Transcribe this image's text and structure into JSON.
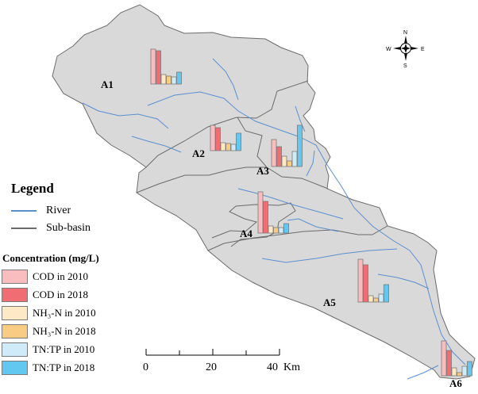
{
  "legend": {
    "title": "Legend",
    "river_label": "River",
    "subbasin_label": "Sub-basin",
    "concentration_title": "Concentration (mg/L)",
    "items": [
      {
        "label": "COD in 2010",
        "color": "#f9bcbf"
      },
      {
        "label": "COD in 2018",
        "color": "#f06e73"
      },
      {
        "label": "NH₃-N in 2010",
        "color": "#fde9c6"
      },
      {
        "label": "NH₃-N in 2018",
        "color": "#f8cc82"
      },
      {
        "label": "TN:TP in 2010",
        "color": "#cfeaf8"
      },
      {
        "label": "TN:TP in 2018",
        "color": "#63c8ef"
      }
    ]
  },
  "colors": {
    "basin_fill": "#d9d9d9",
    "basin_edge": "#6b6b6b",
    "river": "#5b8fd0",
    "bar_edge": "#7a7a7a"
  },
  "subbasins": [
    "A1",
    "A2",
    "A3",
    "A4",
    "A5",
    "A6"
  ],
  "scale_bar": {
    "ticks": [
      "0",
      "20",
      "40"
    ],
    "unit": "Km"
  },
  "compass": {
    "n": "N",
    "s": "S",
    "e": "E",
    "w": "W"
  },
  "chart_data": {
    "type": "bar",
    "categories": [
      "COD in 2010",
      "COD in 2018",
      "NH₃-N in 2010",
      "NH₃-N in 2018",
      "TN:TP in 2010",
      "TN:TP in 2018"
    ],
    "series": [
      {
        "name": "A1",
        "values": [
          44,
          42,
          12,
          10,
          9,
          15
        ]
      },
      {
        "name": "A2",
        "values": [
          32,
          29,
          10,
          9,
          8,
          22
        ]
      },
      {
        "name": "A3",
        "values": [
          34,
          25,
          13,
          7,
          19,
          52
        ]
      },
      {
        "name": "A4",
        "values": [
          52,
          40,
          9,
          7,
          7,
          12
        ]
      },
      {
        "name": "A5",
        "values": [
          54,
          47,
          8,
          5,
          10,
          22
        ]
      },
      {
        "name": "A6",
        "values": [
          44,
          32,
          10,
          4,
          12,
          18
        ]
      }
    ]
  }
}
